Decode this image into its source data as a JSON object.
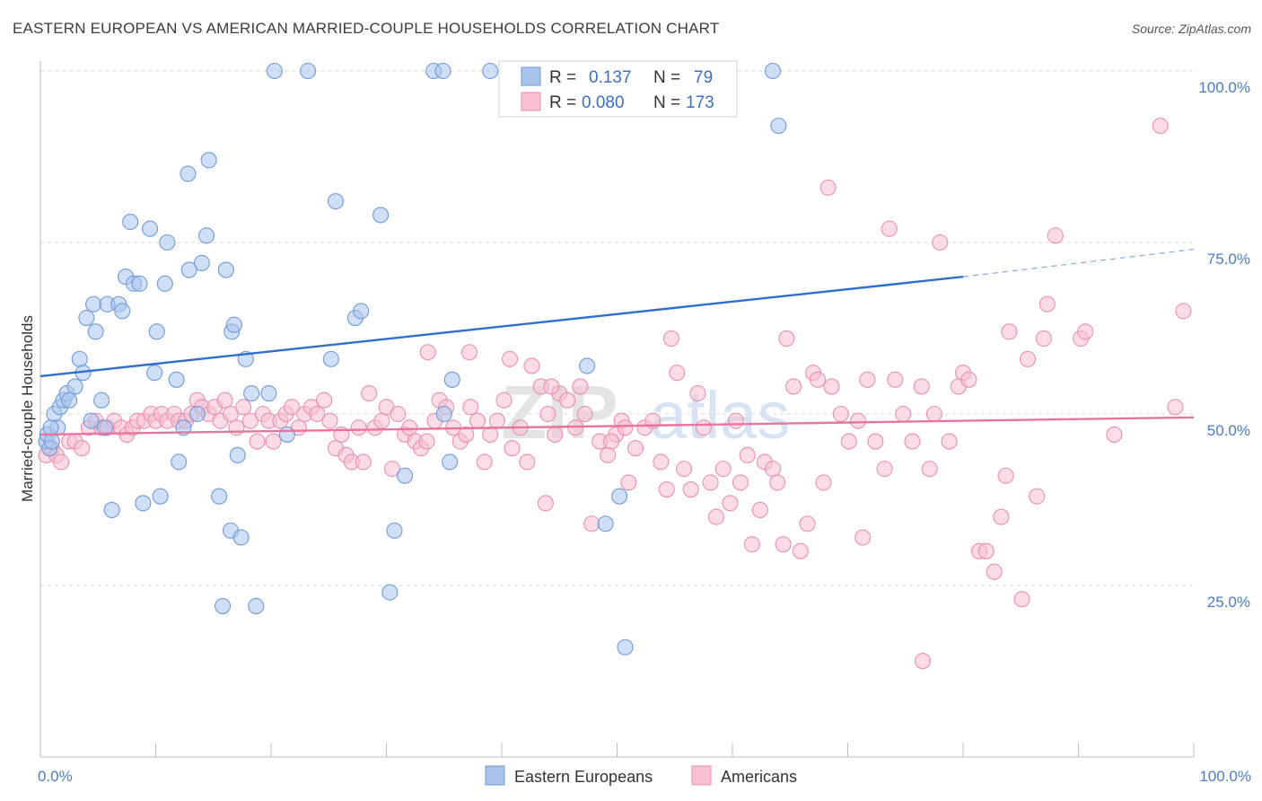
{
  "title": "EASTERN EUROPEAN VS AMERICAN MARRIED-COUPLE HOUSEHOLDS CORRELATION CHART",
  "source": "Source: ZipAtlas.com",
  "watermark": "ZIPatlas",
  "legend_box": {
    "rows": [
      {
        "r_label": "R =",
        "r_value": "0.137",
        "n_label": "N =",
        "n_value": "79"
      },
      {
        "r_label": "R =",
        "r_value": "0.080",
        "n_label": "N =",
        "n_value": "173"
      }
    ]
  },
  "bottom_legend": [
    "Eastern Europeans",
    "Americans"
  ],
  "colors": {
    "eastern_fill": "#a9c4ec",
    "eastern_stroke": "#6f9ad8",
    "eastern_line": "#2f6fcc",
    "american_fill": "#f7bfd1",
    "american_stroke": "#ea8fb0",
    "american_line": "#e8759d",
    "tick_text": "#4a7cc7",
    "grid": "#d9d9d9"
  },
  "chart_data": {
    "type": "scatter",
    "title": "EASTERN EUROPEAN VS AMERICAN MARRIED-COUPLE HOUSEHOLDS CORRELATION CHART",
    "xlabel": "",
    "ylabel": "Married-couple Households",
    "xlim": [
      0,
      100
    ],
    "ylim": [
      0,
      100
    ],
    "x_tick_labels": [
      "0.0%",
      "100.0%"
    ],
    "y_tick_labels": [
      "25.0%",
      "50.0%",
      "75.0%",
      "100.0%"
    ],
    "y_ticks": [
      25,
      50,
      75,
      100
    ],
    "grid": true,
    "legend_position": "top-center",
    "series": [
      {
        "name": "Eastern Europeans",
        "r": 0.137,
        "n": 79,
        "trend": {
          "x0": 0,
          "y0": 55.5,
          "x1": 80,
          "y1": 70,
          "dashed_to": 100,
          "dashed_y": 74
        },
        "points": [
          [
            0.5,
            46
          ],
          [
            0.6,
            47
          ],
          [
            0.8,
            45
          ],
          [
            1.0,
            46
          ],
          [
            1.2,
            50
          ],
          [
            1.5,
            48
          ],
          [
            1.7,
            51
          ],
          [
            2.0,
            52
          ],
          [
            2.3,
            53
          ],
          [
            2.5,
            52
          ],
          [
            3.0,
            54
          ],
          [
            3.4,
            58
          ],
          [
            3.7,
            56
          ],
          [
            4.0,
            64
          ],
          [
            4.4,
            49
          ],
          [
            4.6,
            66
          ],
          [
            4.8,
            62
          ],
          [
            5.3,
            52
          ],
          [
            5.6,
            48
          ],
          [
            5.8,
            66
          ],
          [
            6.2,
            36
          ],
          [
            6.8,
            66
          ],
          [
            7.1,
            65
          ],
          [
            7.4,
            70
          ],
          [
            7.8,
            78
          ],
          [
            8.1,
            69
          ],
          [
            8.6,
            69
          ],
          [
            8.9,
            37
          ],
          [
            9.5,
            77
          ],
          [
            9.9,
            56
          ],
          [
            10.1,
            62
          ],
          [
            10.4,
            38
          ],
          [
            10.8,
            69
          ],
          [
            11.0,
            75
          ],
          [
            11.8,
            55
          ],
          [
            12.0,
            43
          ],
          [
            12.4,
            48
          ],
          [
            12.8,
            85
          ],
          [
            12.9,
            71
          ],
          [
            13.6,
            50
          ],
          [
            14.0,
            72
          ],
          [
            14.4,
            76
          ],
          [
            14.6,
            87
          ],
          [
            15.5,
            38
          ],
          [
            15.8,
            22
          ],
          [
            16.1,
            71
          ],
          [
            16.5,
            33
          ],
          [
            16.6,
            62
          ],
          [
            16.8,
            63
          ],
          [
            17.1,
            44
          ],
          [
            17.4,
            32
          ],
          [
            17.8,
            58
          ],
          [
            18.7,
            22
          ],
          [
            18.3,
            53
          ],
          [
            19.8,
            53
          ],
          [
            20.3,
            100
          ],
          [
            21.4,
            47
          ],
          [
            23.2,
            100
          ],
          [
            25.2,
            58
          ],
          [
            25.6,
            81
          ],
          [
            27.3,
            64
          ],
          [
            27.8,
            65
          ],
          [
            29.5,
            79
          ],
          [
            30.3,
            24
          ],
          [
            30.7,
            33
          ],
          [
            31.6,
            41
          ],
          [
            34.1,
            100
          ],
          [
            34.9,
            100
          ],
          [
            35.0,
            50
          ],
          [
            35.5,
            43
          ],
          [
            35.7,
            55
          ],
          [
            39.0,
            100
          ],
          [
            47.4,
            57
          ],
          [
            49.0,
            34
          ],
          [
            50.2,
            38
          ],
          [
            50.7,
            16
          ],
          [
            63.5,
            100
          ],
          [
            64.0,
            92
          ],
          [
            0.9,
            48
          ]
        ]
      },
      {
        "name": "Americans",
        "r": 0.08,
        "n": 173,
        "trend": {
          "x0": 0,
          "y0": 47,
          "x1": 100,
          "y1": 49.5
        },
        "points": [
          [
            0.5,
            44
          ],
          [
            1.0,
            45
          ],
          [
            1.4,
            44
          ],
          [
            1.8,
            43
          ],
          [
            2.5,
            46
          ],
          [
            3.0,
            46
          ],
          [
            3.6,
            45
          ],
          [
            4.2,
            48
          ],
          [
            4.8,
            49
          ],
          [
            5.3,
            48
          ],
          [
            5.8,
            48
          ],
          [
            6.4,
            49
          ],
          [
            7.0,
            48
          ],
          [
            7.5,
            47
          ],
          [
            8.0,
            48
          ],
          [
            8.4,
            49
          ],
          [
            9.0,
            49
          ],
          [
            9.6,
            50
          ],
          [
            10.0,
            49
          ],
          [
            10.5,
            50
          ],
          [
            11.0,
            49
          ],
          [
            11.6,
            50
          ],
          [
            12.0,
            49
          ],
          [
            12.6,
            49
          ],
          [
            13.1,
            50
          ],
          [
            13.6,
            52
          ],
          [
            14.0,
            51
          ],
          [
            14.6,
            50
          ],
          [
            15.1,
            51
          ],
          [
            15.6,
            49
          ],
          [
            16.0,
            52
          ],
          [
            16.5,
            50
          ],
          [
            17.0,
            48
          ],
          [
            17.6,
            51
          ],
          [
            18.2,
            49
          ],
          [
            18.8,
            46
          ],
          [
            19.3,
            50
          ],
          [
            19.8,
            49
          ],
          [
            20.2,
            46
          ],
          [
            20.8,
            49
          ],
          [
            21.3,
            50
          ],
          [
            21.8,
            51
          ],
          [
            22.4,
            48
          ],
          [
            22.9,
            50
          ],
          [
            23.5,
            51
          ],
          [
            24.0,
            50
          ],
          [
            24.6,
            52
          ],
          [
            25.1,
            49
          ],
          [
            25.6,
            45
          ],
          [
            26.1,
            47
          ],
          [
            26.5,
            44
          ],
          [
            27.0,
            43
          ],
          [
            27.6,
            48
          ],
          [
            28.0,
            43
          ],
          [
            28.5,
            53
          ],
          [
            29.0,
            48
          ],
          [
            29.6,
            49
          ],
          [
            30.0,
            51
          ],
          [
            30.5,
            42
          ],
          [
            31.0,
            50
          ],
          [
            31.6,
            47
          ],
          [
            32.0,
            48
          ],
          [
            32.5,
            46
          ],
          [
            33.0,
            45
          ],
          [
            33.5,
            46
          ],
          [
            34.2,
            49
          ],
          [
            34.6,
            52
          ],
          [
            35.2,
            51
          ],
          [
            35.8,
            48
          ],
          [
            36.4,
            46
          ],
          [
            36.9,
            47
          ],
          [
            37.3,
            51
          ],
          [
            37.9,
            49
          ],
          [
            38.5,
            43
          ],
          [
            39.0,
            47
          ],
          [
            39.6,
            49
          ],
          [
            40.2,
            52
          ],
          [
            40.9,
            45
          ],
          [
            41.6,
            48
          ],
          [
            42.2,
            43
          ],
          [
            42.6,
            57
          ],
          [
            43.4,
            54
          ],
          [
            43.8,
            37
          ],
          [
            44.0,
            50
          ],
          [
            44.6,
            47
          ],
          [
            45.0,
            53
          ],
          [
            45.7,
            52
          ],
          [
            46.4,
            48
          ],
          [
            46.8,
            54
          ],
          [
            47.2,
            50
          ],
          [
            47.8,
            34
          ],
          [
            48.5,
            46
          ],
          [
            49.2,
            44
          ],
          [
            49.9,
            47
          ],
          [
            50.4,
            49
          ],
          [
            50.7,
            48
          ],
          [
            51.0,
            40
          ],
          [
            51.6,
            45
          ],
          [
            52.4,
            48
          ],
          [
            53.1,
            49
          ],
          [
            53.8,
            43
          ],
          [
            54.3,
            39
          ],
          [
            54.7,
            61
          ],
          [
            55.2,
            56
          ],
          [
            55.8,
            42
          ],
          [
            56.4,
            39
          ],
          [
            57.0,
            53
          ],
          [
            57.5,
            48
          ],
          [
            58.1,
            40
          ],
          [
            58.6,
            35
          ],
          [
            59.2,
            42
          ],
          [
            59.8,
            37
          ],
          [
            60.3,
            49
          ],
          [
            60.7,
            40
          ],
          [
            61.3,
            44
          ],
          [
            61.7,
            31
          ],
          [
            62.4,
            36
          ],
          [
            62.8,
            43
          ],
          [
            63.5,
            42
          ],
          [
            63.9,
            40
          ],
          [
            64.4,
            31
          ],
          [
            64.7,
            61
          ],
          [
            65.3,
            54
          ],
          [
            65.9,
            30
          ],
          [
            66.5,
            34
          ],
          [
            67.0,
            56
          ],
          [
            67.4,
            55
          ],
          [
            67.9,
            40
          ],
          [
            68.3,
            83
          ],
          [
            68.6,
            54
          ],
          [
            69.4,
            50
          ],
          [
            70.1,
            46
          ],
          [
            70.9,
            49
          ],
          [
            71.3,
            32
          ],
          [
            71.7,
            55
          ],
          [
            72.4,
            46
          ],
          [
            73.2,
            42
          ],
          [
            73.6,
            77
          ],
          [
            74.1,
            55
          ],
          [
            74.8,
            50
          ],
          [
            75.6,
            46
          ],
          [
            76.5,
            14
          ],
          [
            77.1,
            42
          ],
          [
            77.5,
            50
          ],
          [
            78.0,
            75
          ],
          [
            78.8,
            46
          ],
          [
            79.6,
            54
          ],
          [
            80.0,
            56
          ],
          [
            80.5,
            55
          ],
          [
            81.4,
            30
          ],
          [
            82.0,
            30
          ],
          [
            82.7,
            27
          ],
          [
            83.3,
            35
          ],
          [
            83.7,
            41
          ],
          [
            84.0,
            62
          ],
          [
            85.1,
            23
          ],
          [
            85.6,
            58
          ],
          [
            86.4,
            38
          ],
          [
            87.0,
            61
          ],
          [
            87.3,
            66
          ],
          [
            88.0,
            76
          ],
          [
            90.2,
            61
          ],
          [
            90.6,
            62
          ],
          [
            93.1,
            47
          ],
          [
            97.1,
            92
          ],
          [
            98.4,
            51
          ],
          [
            99.1,
            65
          ],
          [
            49.5,
            46
          ],
          [
            76.4,
            54
          ],
          [
            44.3,
            54
          ],
          [
            37.2,
            59
          ],
          [
            33.6,
            59
          ],
          [
            40.7,
            58
          ]
        ]
      }
    ]
  }
}
